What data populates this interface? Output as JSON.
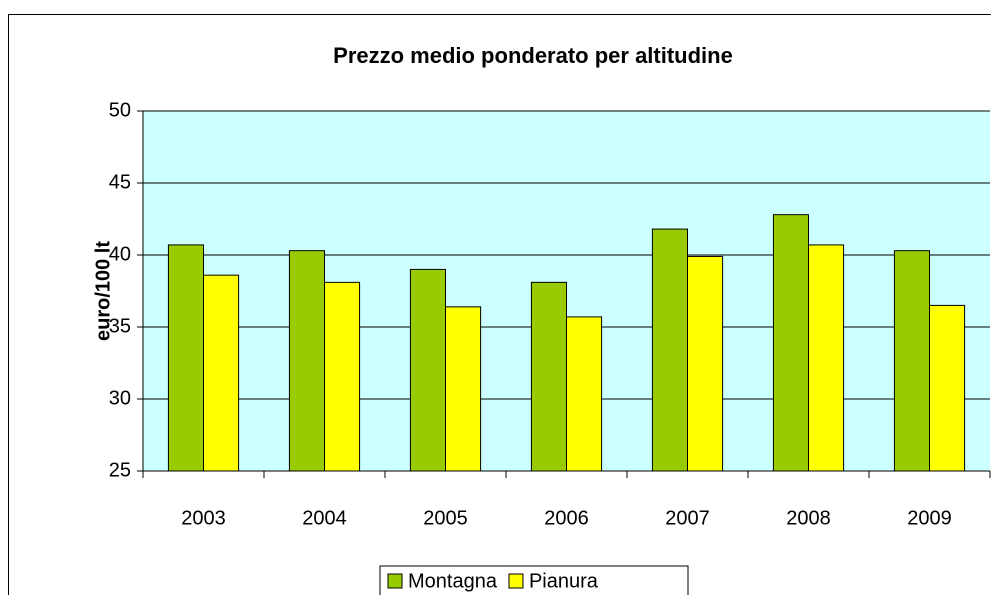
{
  "chart_data": {
    "type": "bar",
    "title": "Prezzo medio ponderato per altitudine",
    "y_label": "euro/100 lt",
    "categories": [
      "2003",
      "2004",
      "2005",
      "2006",
      "2007",
      "2008",
      "2009"
    ],
    "series": [
      {
        "name": "Montagna",
        "color": "#99cc00",
        "values": [
          40.7,
          40.3,
          39.0,
          38.1,
          41.8,
          42.8,
          40.3
        ]
      },
      {
        "name": "Pianura",
        "color": "#ffff00",
        "values": [
          38.6,
          38.1,
          36.4,
          35.7,
          39.9,
          40.7,
          36.5
        ]
      }
    ],
    "ylim": [
      25,
      50
    ],
    "yticks": [
      25,
      30,
      35,
      40,
      45,
      50
    ],
    "grid": true,
    "plot_background": "#ccffff",
    "legend": "bottom"
  }
}
